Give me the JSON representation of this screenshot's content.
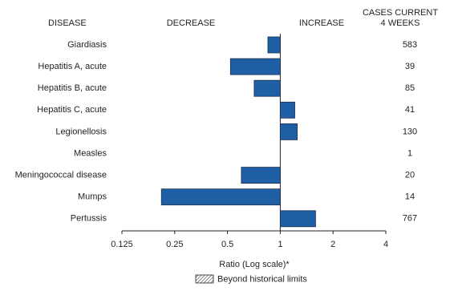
{
  "chart_data": {
    "type": "bar",
    "orientation": "horizontal",
    "log_scale": true,
    "headers": {
      "disease": "DISEASE",
      "decrease": "DECREASE",
      "increase": "INCREASE",
      "cases": [
        "CASES CURRENT",
        "4 WEEKS"
      ]
    },
    "categories": [
      "Giardiasis",
      "Hepatitis A, acute",
      "Hepatitis B, acute",
      "Hepatitis C, acute",
      "Legionellosis",
      "Measles",
      "Meningococcal disease",
      "Mumps",
      "Pertussis"
    ],
    "values": [
      0.85,
      0.52,
      0.71,
      1.21,
      1.25,
      1,
      0.6,
      0.21,
      1.59
    ],
    "cases": [
      583,
      39,
      85,
      41,
      130,
      1,
      20,
      14,
      767
    ],
    "color": "#1f5fa6",
    "xlim": [
      0.125,
      4
    ],
    "xticks": [
      0.125,
      0.25,
      0.5,
      1,
      2,
      4
    ],
    "xlabel": "Ratio (Log scale)*",
    "legend": {
      "label": "Beyond historical limits"
    }
  }
}
